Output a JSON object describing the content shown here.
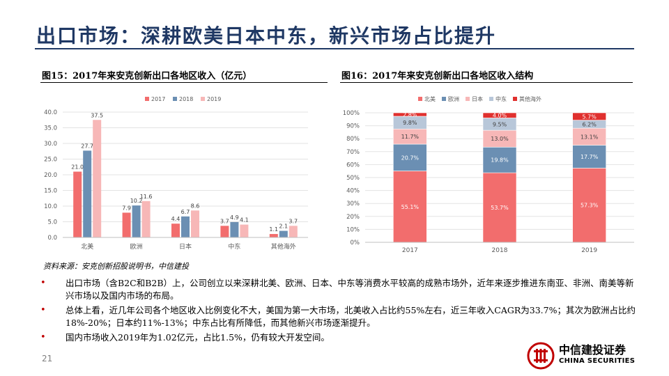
{
  "page": {
    "title": "出口市场：深耕欧美日本中东，新兴市场占比提升",
    "page_number": "21",
    "source": "资料来源：安克创新招股说明书，中信建投"
  },
  "chart1": {
    "title": "图15：2017年来安克创新出口各地区收入（亿元）"
  },
  "chart2": {
    "title": "图16：2017年来安克创新出口各地区收入结构"
  },
  "chart_data": [
    {
      "type": "bar",
      "title": "图15：2017年来安克创新出口各地区收入（亿元）",
      "categories": [
        "北美",
        "欧洲",
        "日本",
        "中东",
        "其他海外"
      ],
      "series": [
        {
          "name": "2017",
          "values": [
            21.0,
            7.9,
            4.4,
            3.7,
            1.1
          ]
        },
        {
          "name": "2018",
          "values": [
            27.7,
            10.2,
            6.7,
            4.9,
            2.1
          ]
        },
        {
          "name": "2019",
          "values": [
            37.5,
            11.6,
            8.6,
            4.1,
            3.7
          ]
        }
      ],
      "value_labels": [
        [
          "21.0",
          "7.9",
          "4.4",
          "3.7",
          "1.1"
        ],
        [
          "27.7",
          "10.2",
          "6.7",
          "4.9",
          "2.1"
        ],
        [
          "37.5",
          "11.6",
          "8.6",
          "4.1",
          "3.7"
        ]
      ],
      "ylim": [
        0,
        40
      ],
      "yticks": [
        "0.0",
        "5.0",
        "10.0",
        "15.0",
        "20.0",
        "25.0",
        "30.0",
        "35.0",
        "40.0"
      ],
      "legend_position": "top-center",
      "grid": true
    },
    {
      "type": "bar",
      "stacked": true,
      "title": "图16：2017年来安克创新出口各地区收入结构",
      "categories": [
        "2017",
        "2018",
        "2019"
      ],
      "series": [
        {
          "name": "北美",
          "values": [
            55.1,
            53.7,
            57.3
          ],
          "labels": [
            "55.1%",
            "53.7%",
            "57.3%"
          ]
        },
        {
          "name": "欧洲",
          "values": [
            20.7,
            19.8,
            17.7
          ],
          "labels": [
            "20.7%",
            "19.8%",
            "17.7%"
          ]
        },
        {
          "name": "日本",
          "values": [
            11.7,
            13.0,
            13.1
          ],
          "labels": [
            "11.7%",
            "13.0%",
            "13.1%"
          ]
        },
        {
          "name": "中东",
          "values": [
            9.8,
            9.5,
            6.2
          ],
          "labels": [
            "9.8%",
            "9.5%",
            "6.2%"
          ]
        },
        {
          "name": "其他海外",
          "values": [
            2.8,
            4.0,
            5.7
          ],
          "labels": [
            "2.8%",
            "4.0%",
            "5.7%"
          ]
        }
      ],
      "ylim": [
        0,
        100
      ],
      "yticks": [
        "0%",
        "10%",
        "20%",
        "30%",
        "40%",
        "50%",
        "60%",
        "70%",
        "80%",
        "90%",
        "100%"
      ],
      "legend_position": "top-left",
      "grid": true
    }
  ],
  "colors": {
    "title": "#1f3864",
    "c2017": "#f26d6d",
    "c2018": "#6b8fb3",
    "c2019": "#f7b7b7",
    "north_america": "#f26d6d",
    "europe": "#6b8fb3",
    "japan": "#f7b7b7",
    "middle_east": "#b8c7d9",
    "other": "#e0302e",
    "bullet": "#c00000"
  },
  "bullets": [
    "出口市场（含B2C和B2B）上，公司创立以来深耕北美、欧洲、日本、中东等消费水平较高的成熟市场外，近年来逐步推进东南亚、非洲、南美等新兴市场以及国内市场的布局。",
    "总体上看，近几年公司各个地区收入比例变化不大，美国为第一大市场，北美收入占比约55%左右，近三年收入CAGR为33.7%；其次为欧洲占比约18%-20%；日本约11%-13%；中东占比有所降低，而其他新兴市场逐渐提升。",
    "国内市场收入2019年为1.02亿元，占比1.5%，仍有较大开发空间。"
  ],
  "logo": {
    "name": "中信建投证券",
    "subtitle": "CHINA SECURITIES"
  }
}
